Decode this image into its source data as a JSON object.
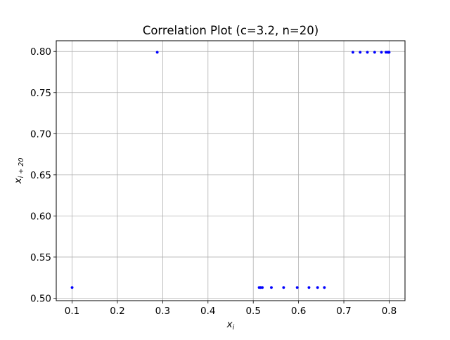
{
  "chart_data": {
    "type": "scatter",
    "title": "Correlation Plot (c=3.2, n=20)",
    "xlabel": {
      "main": "x",
      "sub": "i"
    },
    "ylabel": {
      "main": "x",
      "sub": "i + 20"
    },
    "xlim": [
      0.065,
      0.835
    ],
    "ylim": [
      0.497,
      0.813
    ],
    "xticks": [
      0.1,
      0.2,
      0.3,
      0.4,
      0.5,
      0.6,
      0.7,
      0.8
    ],
    "xtick_labels": [
      "0.1",
      "0.2",
      "0.3",
      "0.4",
      "0.5",
      "0.6",
      "0.7",
      "0.8"
    ],
    "yticks": [
      0.5,
      0.55,
      0.6,
      0.65,
      0.7,
      0.75,
      0.8
    ],
    "ytick_labels": [
      "0.50",
      "0.55",
      "0.60",
      "0.65",
      "0.70",
      "0.75",
      "0.80"
    ],
    "grid": true,
    "point_color": "#0000ff",
    "points": [
      {
        "x": 0.1,
        "y": 0.513
      },
      {
        "x": 0.288,
        "y": 0.799
      },
      {
        "x": 0.513,
        "y": 0.513
      },
      {
        "x": 0.516,
        "y": 0.513
      },
      {
        "x": 0.52,
        "y": 0.513
      },
      {
        "x": 0.54,
        "y": 0.513
      },
      {
        "x": 0.567,
        "y": 0.513
      },
      {
        "x": 0.597,
        "y": 0.513
      },
      {
        "x": 0.623,
        "y": 0.513
      },
      {
        "x": 0.642,
        "y": 0.513
      },
      {
        "x": 0.657,
        "y": 0.513
      },
      {
        "x": 0.72,
        "y": 0.799
      },
      {
        "x": 0.736,
        "y": 0.799
      },
      {
        "x": 0.752,
        "y": 0.799
      },
      {
        "x": 0.768,
        "y": 0.799
      },
      {
        "x": 0.783,
        "y": 0.799
      },
      {
        "x": 0.793,
        "y": 0.799
      },
      {
        "x": 0.797,
        "y": 0.799
      },
      {
        "x": 0.799,
        "y": 0.799
      },
      {
        "x": 0.8,
        "y": 0.799
      }
    ]
  }
}
